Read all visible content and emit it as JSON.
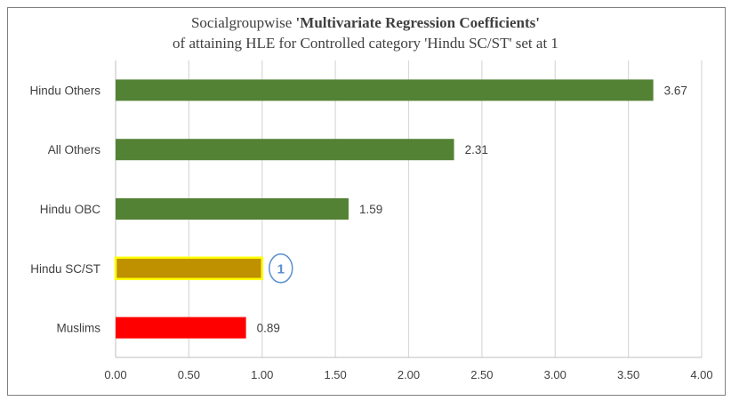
{
  "chart_data": {
    "type": "bar",
    "orientation": "horizontal",
    "title_prefix": "Socialgroupwise ",
    "title_bold": "'Multivariate Regression Coefficients'",
    "title_line2": "of attaining HLE for Controlled category 'Hindu SC/ST' set at 1",
    "categories": [
      "Hindu Others",
      "All Others",
      "Hindu OBC",
      "Hindu SC/ST",
      "Muslims"
    ],
    "values": [
      3.67,
      2.31,
      1.59,
      1,
      0.89
    ],
    "data_labels": [
      "3.67",
      "2.31",
      "1.59",
      "1",
      "0.89"
    ],
    "bar_colors": [
      "#548235",
      "#548235",
      "#548235",
      "#bf9000",
      "#ff0000"
    ],
    "highlight_category": "Hindu SC/ST",
    "highlight_border_color": "#ffff00",
    "callout_color": "#5b8fd0",
    "xlim": [
      0,
      4
    ],
    "xticks": [
      "0.00",
      "0.50",
      "1.00",
      "1.50",
      "2.00",
      "2.50",
      "3.00",
      "3.50",
      "4.00"
    ],
    "xtick_values": [
      0,
      0.5,
      1,
      1.5,
      2,
      2.5,
      3,
      3.5,
      4
    ],
    "gridlines": true,
    "gridline_color": "#d9d9d9",
    "axis_color": "#bfbfbf"
  }
}
